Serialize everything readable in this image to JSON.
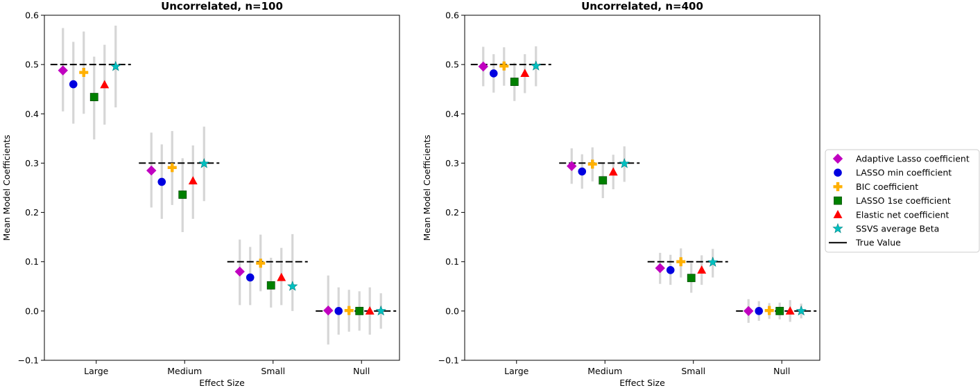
{
  "legend": {
    "placement": "right-outside",
    "entries": [
      {
        "label": "Adaptive Lasso coefficient",
        "marker": "diamond",
        "color": "#c000c0"
      },
      {
        "label": "LASSO min coefficient",
        "marker": "circle",
        "color": "#0000e0"
      },
      {
        "label": "BIC coefficient",
        "marker": "plus",
        "color": "#ffb000"
      },
      {
        "label": "LASSO 1se coefficient",
        "marker": "square",
        "color": "#008000"
      },
      {
        "label": "Elastic net coefficient",
        "marker": "triangle",
        "color": "#ff0000"
      },
      {
        "label": "SSVS average Beta",
        "marker": "star",
        "color": "#00c0c0"
      },
      {
        "label": "True Value",
        "marker": "line",
        "color": "#000000"
      }
    ]
  },
  "chart_data": [
    {
      "type": "scatter",
      "title": "Uncorrelated, n=100",
      "xlabel": "Effect Size",
      "ylabel": "Mean Model Coefficients",
      "categories": [
        "Large",
        "Medium",
        "Small",
        "Null"
      ],
      "ylim": [
        -0.1,
        0.6
      ],
      "yticks": [
        "−0.1",
        "0.0",
        "0.1",
        "0.2",
        "0.3",
        "0.4",
        "0.5",
        "0.6"
      ],
      "true_values": [
        0.5,
        0.3,
        0.1,
        0.0
      ],
      "grid": false,
      "series": [
        {
          "name": "Adaptive Lasso coefficient",
          "values": [
            0.488,
            0.285,
            0.08,
            0.001
          ],
          "lower": [
            0.405,
            0.21,
            0.012,
            -0.068
          ],
          "upper": [
            0.574,
            0.362,
            0.145,
            0.072
          ]
        },
        {
          "name": "LASSO min coefficient",
          "values": [
            0.46,
            0.262,
            0.068,
            0.0
          ],
          "lower": [
            0.38,
            0.187,
            0.012,
            -0.048
          ],
          "upper": [
            0.546,
            0.338,
            0.13,
            0.048
          ]
        },
        {
          "name": "BIC coefficient",
          "values": [
            0.484,
            0.291,
            0.097,
            0.001
          ],
          "lower": [
            0.4,
            0.215,
            0.04,
            -0.042
          ],
          "upper": [
            0.567,
            0.365,
            0.155,
            0.043
          ]
        },
        {
          "name": "LASSO 1se coefficient",
          "values": [
            0.434,
            0.236,
            0.052,
            0.0
          ],
          "lower": [
            0.348,
            0.16,
            0.007,
            -0.04
          ],
          "upper": [
            0.516,
            0.31,
            0.108,
            0.04
          ]
        },
        {
          "name": "Elastic net coefficient",
          "values": [
            0.459,
            0.264,
            0.068,
            0.0
          ],
          "lower": [
            0.378,
            0.187,
            0.012,
            -0.048
          ],
          "upper": [
            0.54,
            0.336,
            0.128,
            0.048
          ]
        },
        {
          "name": "SSVS average Beta",
          "values": [
            0.496,
            0.299,
            0.05,
            0.0
          ],
          "lower": [
            0.413,
            0.223,
            0.0,
            -0.036
          ],
          "upper": [
            0.579,
            0.374,
            0.156,
            0.036
          ]
        }
      ]
    },
    {
      "type": "scatter",
      "title": "Uncorrelated, n=400",
      "xlabel": "Effect Size",
      "ylabel": "Mean Model Coefficients",
      "categories": [
        "Large",
        "Medium",
        "Small",
        "Null"
      ],
      "ylim": [
        -0.1,
        0.6
      ],
      "yticks": [
        "−0.1",
        "0.0",
        "0.1",
        "0.2",
        "0.3",
        "0.4",
        "0.5",
        "0.6"
      ],
      "true_values": [
        0.5,
        0.3,
        0.1,
        0.0
      ],
      "grid": false,
      "series": [
        {
          "name": "Adaptive Lasso coefficient",
          "values": [
            0.496,
            0.294,
            0.087,
            0.0
          ],
          "lower": [
            0.456,
            0.258,
            0.055,
            -0.024
          ],
          "upper": [
            0.536,
            0.33,
            0.118,
            0.024
          ]
        },
        {
          "name": "LASSO min coefficient",
          "values": [
            0.482,
            0.283,
            0.083,
            0.0
          ],
          "lower": [
            0.443,
            0.248,
            0.053,
            -0.02
          ],
          "upper": [
            0.521,
            0.318,
            0.114,
            0.02
          ]
        },
        {
          "name": "BIC coefficient",
          "values": [
            0.497,
            0.298,
            0.1,
            0.001
          ],
          "lower": [
            0.457,
            0.263,
            0.068,
            -0.016
          ],
          "upper": [
            0.535,
            0.332,
            0.127,
            0.016
          ]
        },
        {
          "name": "LASSO 1se coefficient",
          "values": [
            0.465,
            0.265,
            0.067,
            0.0
          ],
          "lower": [
            0.426,
            0.229,
            0.037,
            -0.017
          ],
          "upper": [
            0.504,
            0.3,
            0.098,
            0.017
          ]
        },
        {
          "name": "Elastic net coefficient",
          "values": [
            0.482,
            0.282,
            0.083,
            0.0
          ],
          "lower": [
            0.442,
            0.247,
            0.053,
            -0.022
          ],
          "upper": [
            0.521,
            0.317,
            0.113,
            0.022
          ]
        },
        {
          "name": "SSVS average Beta",
          "values": [
            0.497,
            0.299,
            0.099,
            0.0
          ],
          "lower": [
            0.456,
            0.262,
            0.068,
            -0.015
          ],
          "upper": [
            0.537,
            0.334,
            0.126,
            0.015
          ]
        }
      ]
    }
  ]
}
